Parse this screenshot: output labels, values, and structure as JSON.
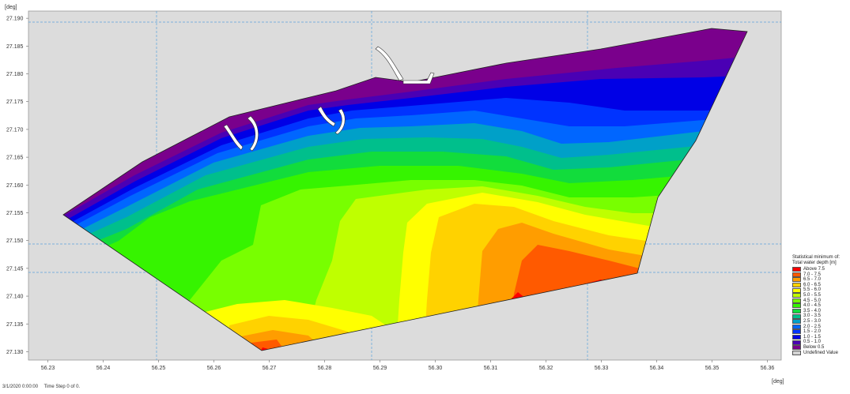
{
  "map": {
    "y_unit": "[deg]",
    "x_unit": "[deg]",
    "y_ticks": [
      "27.190",
      "27.185",
      "27.180",
      "27.175",
      "27.170",
      "27.165",
      "27.160",
      "27.155",
      "27.150",
      "27.145",
      "27.140",
      "27.135",
      "27.130"
    ],
    "x_ticks": [
      "56.23",
      "56.24",
      "56.25",
      "56.26",
      "56.27",
      "56.28",
      "56.29",
      "56.30",
      "56.31",
      "56.32",
      "56.33",
      "56.34",
      "56.35",
      "56.36"
    ],
    "x_range": [
      56.2265,
      56.3625
    ],
    "y_range": [
      27.1285,
      27.1913
    ],
    "background_color": "#dcdcdc",
    "grid_color": "#5ba3dc"
  },
  "legend": {
    "title": "Statistical minimum of: Total water depth [m]",
    "items": [
      {
        "label": "Above 7.5",
        "color": "#ff0000"
      },
      {
        "label": "7.0 - 7.5",
        "color": "#ff5a00"
      },
      {
        "label": "6.5 - 7.0",
        "color": "#ff9d00"
      },
      {
        "label": "6.0 - 6.5",
        "color": "#ffd200"
      },
      {
        "label": "5.5 - 6.0",
        "color": "#ffff00"
      },
      {
        "label": "5.0 - 5.5",
        "color": "#bfff00"
      },
      {
        "label": "4.5 - 5.0",
        "color": "#78ff00"
      },
      {
        "label": "4.0 - 4.5",
        "color": "#36f400"
      },
      {
        "label": "3.5 - 4.0",
        "color": "#12dc3c"
      },
      {
        "label": "3.0 - 3.5",
        "color": "#00bf8c"
      },
      {
        "label": "2.5 - 3.0",
        "color": "#00a0c8"
      },
      {
        "label": "2.0 - 2.5",
        "color": "#0066ff"
      },
      {
        "label": "1.5 - 2.0",
        "color": "#0033ff"
      },
      {
        "label": "1.0 - 1.5",
        "color": "#0000e6"
      },
      {
        "label": "0.5 - 1.0",
        "color": "#4a00b4"
      },
      {
        "label": "Below 0.5",
        "color": "#7a008c"
      },
      {
        "label": "Undefined Value",
        "color": "#d4d4d4"
      }
    ]
  },
  "status": {
    "datetime": "3/1/2020 0:00:00",
    "timestep": "Time Step 0 of 0."
  }
}
